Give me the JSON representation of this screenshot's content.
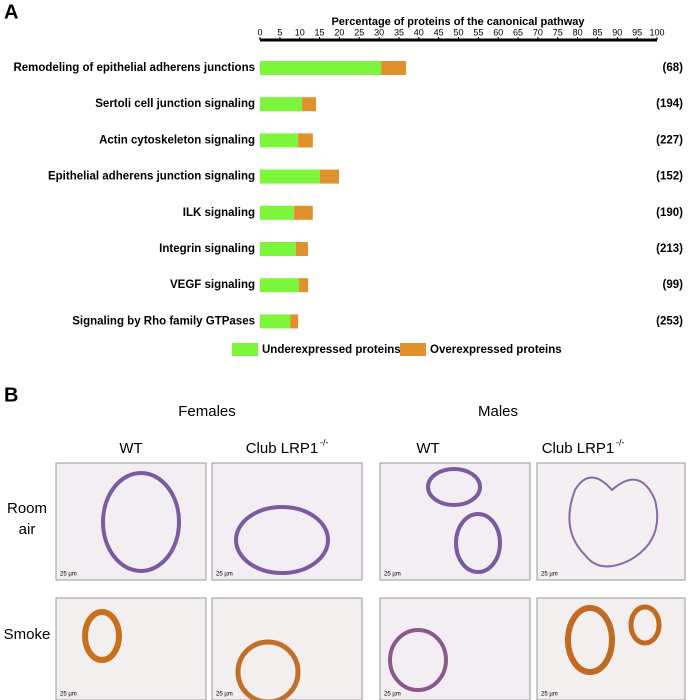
{
  "panel_labels": [
    "A",
    "B"
  ],
  "chart_data": {
    "type": "stacked-barh",
    "xlabel": "Percentage of proteins of the canonical pathway",
    "categories": [
      "Remodeling of epithelial adherens junctions",
      "Sertoli cell junction signaling",
      "Actin cytoskeleton signaling",
      "Epithelial adherens junction signaling",
      "ILK signaling",
      "Integrin signaling",
      "VEGF signaling",
      "Signaling by Rho family GTPases"
    ],
    "count_labels": [
      "(68)",
      "(194)",
      "(227)",
      "(152)",
      "(190)",
      "(213)",
      "(99)",
      "(253)"
    ],
    "series": [
      {
        "name": "Underexpressed proteins",
        "color": "#7cf53a",
        "values": [
          30.5,
          10.6,
          9.6,
          15.1,
          8.6,
          9,
          9.8,
          7.6
        ]
      },
      {
        "name": "Overexpressed proteins",
        "color": "#e0902c",
        "values": [
          6.3,
          3.5,
          3.7,
          4.8,
          4.7,
          3.1,
          2.3,
          2
        ]
      }
    ],
    "xlim": [
      0,
      100
    ],
    "xticks": [
      0,
      5,
      10,
      15,
      20,
      25,
      30,
      35,
      40,
      45,
      50,
      55,
      60,
      65,
      70,
      75,
      80,
      85,
      90,
      95,
      100
    ],
    "axis_position": "top",
    "grid": false
  },
  "panel_b": {
    "groups": [
      "Females",
      "Males"
    ],
    "columns": [
      "WT",
      "Club LRP1",
      "WT",
      "Club LRP1"
    ],
    "column_superscripts": [
      null,
      "-/-",
      null,
      "-/-"
    ],
    "rows": [
      [
        "Room",
        "air"
      ],
      [
        "Smoke"
      ]
    ],
    "scale_label": "25 µm"
  }
}
